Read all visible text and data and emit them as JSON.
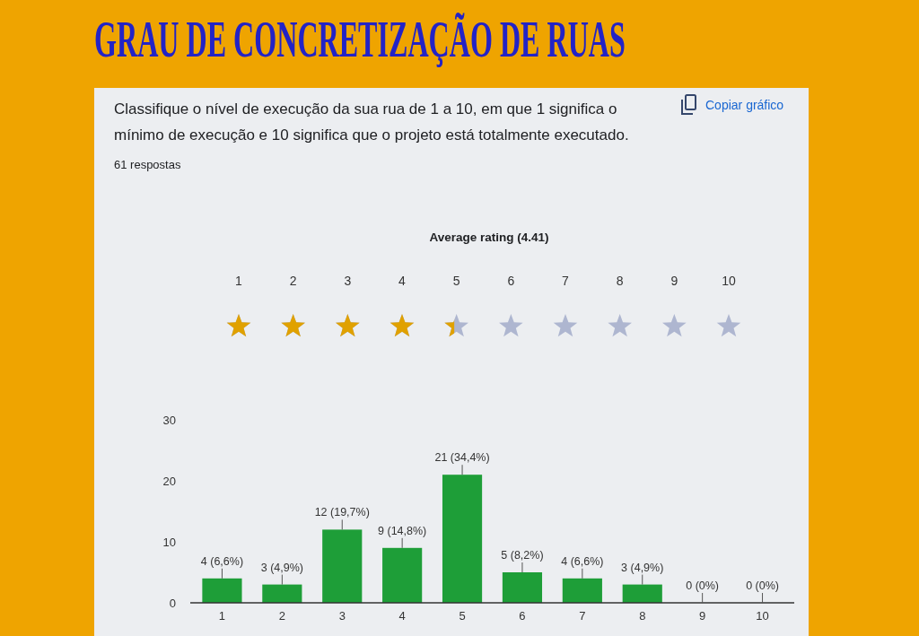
{
  "chart_data": {
    "type": "bar",
    "title": "GRAU DE CONCRETIZAÇÃO DE RUAS",
    "subtitle": "Classifique o nível de execução da sua rua de 1 a 10, em que 1 significa o mínimo de execução e 10 significa que o projeto está totalmente executado.",
    "annotations": [
      "61 respostas",
      "Copiar gráfico",
      "Average rating (4.41)"
    ],
    "categories": [
      "1",
      "2",
      "3",
      "4",
      "5",
      "6",
      "7",
      "8",
      "9",
      "10"
    ],
    "values": [
      4,
      3,
      12,
      9,
      21,
      5,
      4,
      3,
      0,
      0
    ],
    "color": "#1e9e38",
    "value_labels": [
      "4 (6,6%)",
      "3 (4,9%)",
      "12 (19,7%)",
      "9 (14,8%)",
      "21 (34,4%)",
      "5 (8,2%)",
      "4 (6,6%)",
      "3 (4,9%)",
      "0 (0%)",
      "0 (0%)"
    ],
    "ylim": [
      0,
      30
    ],
    "yticks": [
      0,
      10,
      20,
      30
    ]
  }
}
